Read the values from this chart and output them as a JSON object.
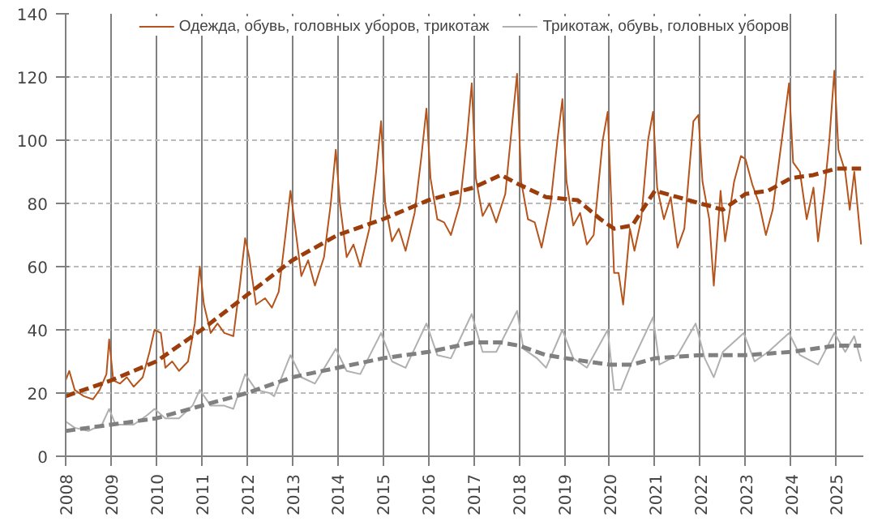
{
  "chart_data": {
    "type": "line",
    "legend": "top",
    "grid": true,
    "marker": "none",
    "xlim": [
      2008,
      2025.6
    ],
    "xticks": [
      2008,
      2009,
      2010,
      2011,
      2012,
      2013,
      2014,
      2015,
      2016,
      2017,
      2018,
      2019,
      2020,
      2021,
      2022,
      2023,
      2024,
      2025
    ],
    "ylim": [
      0,
      140
    ],
    "yticks": [
      0,
      20,
      40,
      60,
      80,
      100,
      120,
      140
    ],
    "series": [
      {
        "name": "Одежда, обувь, головных уборов, трикотаж",
        "color": "#b5541c",
        "line_style": "solid",
        "x": [
          2008.0,
          2008.08,
          2008.2,
          2008.4,
          2008.6,
          2008.75,
          2008.9,
          2008.96,
          2009.05,
          2009.2,
          2009.35,
          2009.5,
          2009.7,
          2009.85,
          2009.96,
          2010.1,
          2010.2,
          2010.35,
          2010.5,
          2010.7,
          2010.85,
          2010.96,
          2011.05,
          2011.2,
          2011.35,
          2011.5,
          2011.7,
          2011.85,
          2011.96,
          2012.05,
          2012.2,
          2012.4,
          2012.55,
          2012.7,
          2012.85,
          2012.96,
          2013.05,
          2013.2,
          2013.35,
          2013.5,
          2013.7,
          2013.85,
          2013.96,
          2014.05,
          2014.2,
          2014.35,
          2014.5,
          2014.7,
          2014.85,
          2014.96,
          2015.05,
          2015.2,
          2015.35,
          2015.5,
          2015.7,
          2015.85,
          2015.96,
          2016.05,
          2016.2,
          2016.35,
          2016.5,
          2016.7,
          2016.85,
          2016.96,
          2017.05,
          2017.2,
          2017.35,
          2017.5,
          2017.7,
          2017.85,
          2017.96,
          2018.05,
          2018.2,
          2018.35,
          2018.5,
          2018.7,
          2018.85,
          2018.96,
          2019.05,
          2019.2,
          2019.35,
          2019.5,
          2019.65,
          2019.85,
          2019.96,
          2020.1,
          2020.2,
          2020.3,
          2020.45,
          2020.55,
          2020.7,
          2020.85,
          2020.96,
          2021.05,
          2021.2,
          2021.35,
          2021.5,
          2021.65,
          2021.85,
          2021.96,
          2022.05,
          2022.2,
          2022.3,
          2022.45,
          2022.55,
          2022.75,
          2022.9,
          2023.0,
          2023.15,
          2023.3,
          2023.45,
          2023.6,
          2023.8,
          2023.96,
          2024.05,
          2024.2,
          2024.35,
          2024.5,
          2024.6,
          2024.75,
          2024.85,
          2024.96,
          2025.05,
          2025.2,
          2025.3,
          2025.4,
          2025.55
        ],
        "values": [
          24,
          27,
          21,
          19,
          18,
          21,
          26,
          37,
          24,
          23,
          25,
          22,
          25,
          33,
          40,
          39,
          28,
          30,
          27,
          30,
          42,
          60,
          48,
          39,
          42,
          39,
          38,
          55,
          69,
          63,
          48,
          50,
          47,
          52,
          70,
          84,
          74,
          57,
          62,
          54,
          63,
          80,
          97,
          80,
          63,
          67,
          60,
          72,
          90,
          106,
          80,
          68,
          72,
          65,
          77,
          95,
          110,
          88,
          75,
          74,
          70,
          80,
          100,
          118,
          88,
          76,
          80,
          74,
          83,
          105,
          121,
          87,
          75,
          74,
          66,
          80,
          100,
          113,
          87,
          73,
          77,
          67,
          70,
          100,
          109,
          58,
          58,
          48,
          72,
          65,
          75,
          100,
          109,
          85,
          75,
          82,
          66,
          72,
          106,
          108,
          87,
          75,
          54,
          84,
          68,
          87,
          95,
          94,
          86,
          80,
          70,
          78,
          100,
          118,
          93,
          90,
          75,
          85,
          68,
          85,
          100,
          122,
          97,
          90,
          78,
          90,
          67
        ]
      },
      {
        "name": "Трикотаж, обувь, головных уборов",
        "color": "#b0b0b0",
        "line_style": "solid",
        "x": [
          2008.0,
          2008.2,
          2008.5,
          2008.8,
          2008.96,
          2009.1,
          2009.5,
          2009.8,
          2009.96,
          2010.2,
          2010.5,
          2010.8,
          2010.96,
          2011.2,
          2011.5,
          2011.7,
          2011.96,
          2012.2,
          2012.5,
          2012.6,
          2012.96,
          2013.2,
          2013.5,
          2013.96,
          2014.2,
          2014.5,
          2014.96,
          2015.2,
          2015.5,
          2015.96,
          2016.2,
          2016.5,
          2016.96,
          2017.2,
          2017.5,
          2017.96,
          2018.1,
          2018.4,
          2018.6,
          2018.96,
          2019.2,
          2019.5,
          2019.96,
          2020.1,
          2020.25,
          2020.5,
          2020.96,
          2021.1,
          2021.5,
          2021.9,
          2022.1,
          2022.3,
          2022.5,
          2022.96,
          2023.2,
          2023.5,
          2023.96,
          2024.2,
          2024.6,
          2024.96,
          2025.2,
          2025.4,
          2025.55
        ],
        "values": [
          11,
          9,
          8,
          10,
          15,
          10,
          10,
          13,
          15,
          12,
          12,
          16,
          21,
          16,
          16,
          15,
          26,
          21,
          20,
          19,
          32,
          25,
          23,
          34,
          27,
          26,
          39,
          30,
          28,
          42,
          32,
          31,
          45,
          33,
          33,
          46,
          34,
          31,
          28,
          40,
          31,
          28,
          40,
          21,
          21,
          30,
          44,
          29,
          32,
          42,
          31,
          25,
          33,
          39,
          30,
          33,
          39,
          32,
          29,
          39,
          33,
          38,
          30
        ]
      },
      {
        "color": "#9c3d0c",
        "line_style": "dashed",
        "x": [
          2008.0,
          2009,
          2010,
          2011,
          2012,
          2013,
          2014,
          2015,
          2016,
          2017,
          2017.6,
          2018,
          2018.6,
          2019.3,
          2019.8,
          2020.1,
          2020.5,
          2021,
          2021.5,
          2022,
          2022.5,
          2023,
          2023.5,
          2024,
          2024.5,
          2025,
          2025.55
        ],
        "values": [
          19,
          24,
          30,
          40,
          51,
          62,
          70,
          75,
          81,
          85,
          89,
          86,
          82,
          81,
          75,
          72,
          73,
          84,
          82,
          80,
          78,
          83,
          84,
          88,
          89,
          91,
          91
        ]
      },
      {
        "color": "#808080",
        "line_style": "dashed",
        "x": [
          2008.0,
          2009,
          2010,
          2011,
          2012,
          2013,
          2014,
          2015,
          2016,
          2017,
          2017.6,
          2018,
          2018.6,
          2019.5,
          2020,
          2020.5,
          2021,
          2022,
          2023,
          2024,
          2025,
          2025.55
        ],
        "values": [
          8,
          10,
          12,
          16,
          20,
          25,
          28,
          31,
          33,
          36,
          36,
          35,
          32,
          30,
          29,
          29,
          31,
          32,
          32,
          33,
          35,
          35
        ]
      }
    ]
  }
}
